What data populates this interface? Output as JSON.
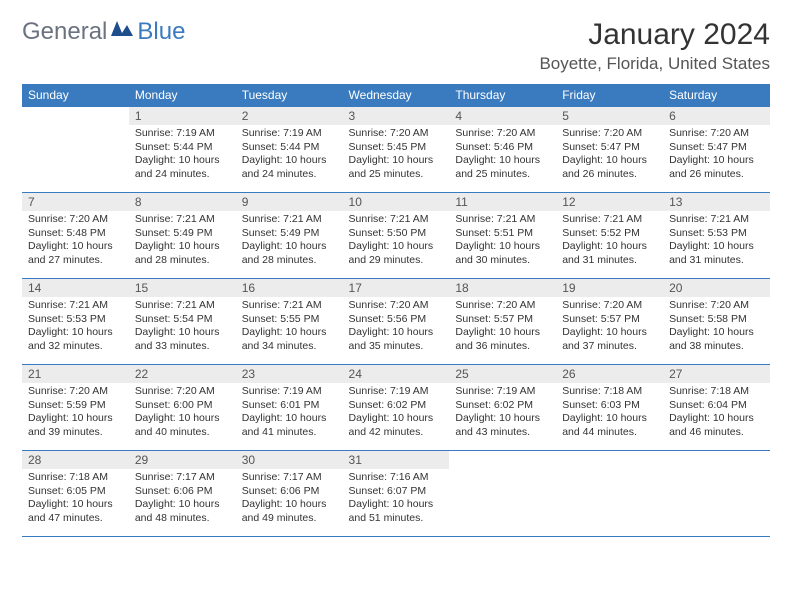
{
  "brand": {
    "part1": "General",
    "part2": "Blue"
  },
  "title": "January 2024",
  "location": "Boyette, Florida, United States",
  "colors": {
    "header_bg": "#3a7bbf",
    "header_fg": "#ffffff",
    "daynum_bg": "#ececec",
    "text": "#333333",
    "rule": "#3a7bbf",
    "logo_gray": "#6b7280",
    "logo_blue": "#3a7bbf"
  },
  "columns": [
    "Sunday",
    "Monday",
    "Tuesday",
    "Wednesday",
    "Thursday",
    "Friday",
    "Saturday"
  ],
  "weeks": [
    [
      null,
      {
        "n": "1",
        "sunrise": "Sunrise: 7:19 AM",
        "sunset": "Sunset: 5:44 PM",
        "day1": "Daylight: 10 hours",
        "day2": "and 24 minutes."
      },
      {
        "n": "2",
        "sunrise": "Sunrise: 7:19 AM",
        "sunset": "Sunset: 5:44 PM",
        "day1": "Daylight: 10 hours",
        "day2": "and 24 minutes."
      },
      {
        "n": "3",
        "sunrise": "Sunrise: 7:20 AM",
        "sunset": "Sunset: 5:45 PM",
        "day1": "Daylight: 10 hours",
        "day2": "and 25 minutes."
      },
      {
        "n": "4",
        "sunrise": "Sunrise: 7:20 AM",
        "sunset": "Sunset: 5:46 PM",
        "day1": "Daylight: 10 hours",
        "day2": "and 25 minutes."
      },
      {
        "n": "5",
        "sunrise": "Sunrise: 7:20 AM",
        "sunset": "Sunset: 5:47 PM",
        "day1": "Daylight: 10 hours",
        "day2": "and 26 minutes."
      },
      {
        "n": "6",
        "sunrise": "Sunrise: 7:20 AM",
        "sunset": "Sunset: 5:47 PM",
        "day1": "Daylight: 10 hours",
        "day2": "and 26 minutes."
      }
    ],
    [
      {
        "n": "7",
        "sunrise": "Sunrise: 7:20 AM",
        "sunset": "Sunset: 5:48 PM",
        "day1": "Daylight: 10 hours",
        "day2": "and 27 minutes."
      },
      {
        "n": "8",
        "sunrise": "Sunrise: 7:21 AM",
        "sunset": "Sunset: 5:49 PM",
        "day1": "Daylight: 10 hours",
        "day2": "and 28 minutes."
      },
      {
        "n": "9",
        "sunrise": "Sunrise: 7:21 AM",
        "sunset": "Sunset: 5:49 PM",
        "day1": "Daylight: 10 hours",
        "day2": "and 28 minutes."
      },
      {
        "n": "10",
        "sunrise": "Sunrise: 7:21 AM",
        "sunset": "Sunset: 5:50 PM",
        "day1": "Daylight: 10 hours",
        "day2": "and 29 minutes."
      },
      {
        "n": "11",
        "sunrise": "Sunrise: 7:21 AM",
        "sunset": "Sunset: 5:51 PM",
        "day1": "Daylight: 10 hours",
        "day2": "and 30 minutes."
      },
      {
        "n": "12",
        "sunrise": "Sunrise: 7:21 AM",
        "sunset": "Sunset: 5:52 PM",
        "day1": "Daylight: 10 hours",
        "day2": "and 31 minutes."
      },
      {
        "n": "13",
        "sunrise": "Sunrise: 7:21 AM",
        "sunset": "Sunset: 5:53 PM",
        "day1": "Daylight: 10 hours",
        "day2": "and 31 minutes."
      }
    ],
    [
      {
        "n": "14",
        "sunrise": "Sunrise: 7:21 AM",
        "sunset": "Sunset: 5:53 PM",
        "day1": "Daylight: 10 hours",
        "day2": "and 32 minutes."
      },
      {
        "n": "15",
        "sunrise": "Sunrise: 7:21 AM",
        "sunset": "Sunset: 5:54 PM",
        "day1": "Daylight: 10 hours",
        "day2": "and 33 minutes."
      },
      {
        "n": "16",
        "sunrise": "Sunrise: 7:21 AM",
        "sunset": "Sunset: 5:55 PM",
        "day1": "Daylight: 10 hours",
        "day2": "and 34 minutes."
      },
      {
        "n": "17",
        "sunrise": "Sunrise: 7:20 AM",
        "sunset": "Sunset: 5:56 PM",
        "day1": "Daylight: 10 hours",
        "day2": "and 35 minutes."
      },
      {
        "n": "18",
        "sunrise": "Sunrise: 7:20 AM",
        "sunset": "Sunset: 5:57 PM",
        "day1": "Daylight: 10 hours",
        "day2": "and 36 minutes."
      },
      {
        "n": "19",
        "sunrise": "Sunrise: 7:20 AM",
        "sunset": "Sunset: 5:57 PM",
        "day1": "Daylight: 10 hours",
        "day2": "and 37 minutes."
      },
      {
        "n": "20",
        "sunrise": "Sunrise: 7:20 AM",
        "sunset": "Sunset: 5:58 PM",
        "day1": "Daylight: 10 hours",
        "day2": "and 38 minutes."
      }
    ],
    [
      {
        "n": "21",
        "sunrise": "Sunrise: 7:20 AM",
        "sunset": "Sunset: 5:59 PM",
        "day1": "Daylight: 10 hours",
        "day2": "and 39 minutes."
      },
      {
        "n": "22",
        "sunrise": "Sunrise: 7:20 AM",
        "sunset": "Sunset: 6:00 PM",
        "day1": "Daylight: 10 hours",
        "day2": "and 40 minutes."
      },
      {
        "n": "23",
        "sunrise": "Sunrise: 7:19 AM",
        "sunset": "Sunset: 6:01 PM",
        "day1": "Daylight: 10 hours",
        "day2": "and 41 minutes."
      },
      {
        "n": "24",
        "sunrise": "Sunrise: 7:19 AM",
        "sunset": "Sunset: 6:02 PM",
        "day1": "Daylight: 10 hours",
        "day2": "and 42 minutes."
      },
      {
        "n": "25",
        "sunrise": "Sunrise: 7:19 AM",
        "sunset": "Sunset: 6:02 PM",
        "day1": "Daylight: 10 hours",
        "day2": "and 43 minutes."
      },
      {
        "n": "26",
        "sunrise": "Sunrise: 7:18 AM",
        "sunset": "Sunset: 6:03 PM",
        "day1": "Daylight: 10 hours",
        "day2": "and 44 minutes."
      },
      {
        "n": "27",
        "sunrise": "Sunrise: 7:18 AM",
        "sunset": "Sunset: 6:04 PM",
        "day1": "Daylight: 10 hours",
        "day2": "and 46 minutes."
      }
    ],
    [
      {
        "n": "28",
        "sunrise": "Sunrise: 7:18 AM",
        "sunset": "Sunset: 6:05 PM",
        "day1": "Daylight: 10 hours",
        "day2": "and 47 minutes."
      },
      {
        "n": "29",
        "sunrise": "Sunrise: 7:17 AM",
        "sunset": "Sunset: 6:06 PM",
        "day1": "Daylight: 10 hours",
        "day2": "and 48 minutes."
      },
      {
        "n": "30",
        "sunrise": "Sunrise: 7:17 AM",
        "sunset": "Sunset: 6:06 PM",
        "day1": "Daylight: 10 hours",
        "day2": "and 49 minutes."
      },
      {
        "n": "31",
        "sunrise": "Sunrise: 7:16 AM",
        "sunset": "Sunset: 6:07 PM",
        "day1": "Daylight: 10 hours",
        "day2": "and 51 minutes."
      },
      null,
      null,
      null
    ]
  ]
}
